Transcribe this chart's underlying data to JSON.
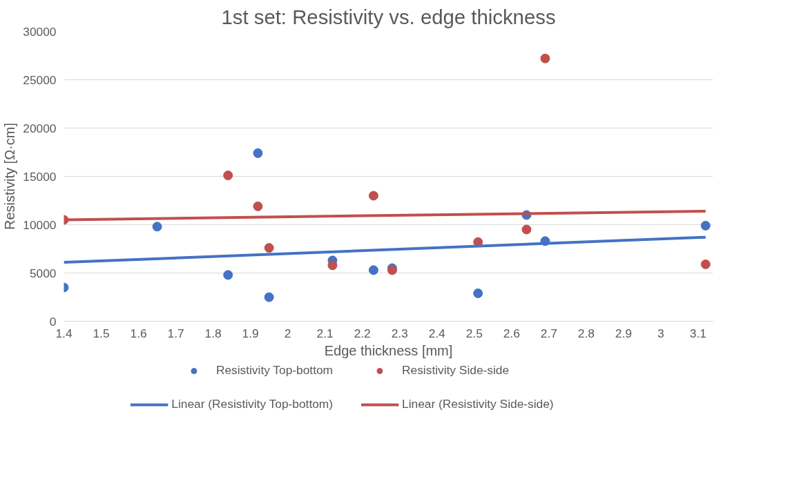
{
  "chart_data": {
    "type": "scatter",
    "title": "1st set: Resistivity vs. edge thickness",
    "xlabel": "Edge thickness [mm]",
    "ylabel": "Resistivity [Ω·cm]",
    "xlim": [
      1.4,
      3.14
    ],
    "xticks": [
      1.4,
      1.5,
      1.6,
      1.7,
      1.8,
      1.9,
      2,
      2.1,
      2.2,
      2.3,
      2.4,
      2.5,
      2.6,
      2.7,
      2.8,
      2.9,
      3,
      3.1
    ],
    "ylim": [
      0,
      30000
    ],
    "yticks": [
      0,
      5000,
      10000,
      15000,
      20000,
      25000,
      30000
    ],
    "grid": "y",
    "legend": "bottom",
    "series": [
      {
        "name": "Resistivity Top-bottom",
        "marker": "circle",
        "color": "#4472c4",
        "x": [
          1.4,
          1.65,
          1.84,
          1.92,
          1.95,
          2.12,
          2.23,
          2.28,
          2.51,
          2.64,
          2.69,
          3.12
        ],
        "values": [
          3500,
          9800,
          4800,
          17400,
          2500,
          6300,
          5300,
          5500,
          2900,
          11000,
          8300,
          9900
        ]
      },
      {
        "name": "Resistivity Side-side",
        "marker": "circle",
        "color": "#c0504d",
        "x": [
          1.4,
          1.84,
          1.92,
          1.95,
          2.12,
          2.23,
          2.28,
          2.51,
          2.64,
          2.69,
          3.12
        ],
        "values": [
          10500,
          15100,
          11900,
          7600,
          5800,
          13000,
          5300,
          8200,
          9500,
          27200,
          5900
        ]
      },
      {
        "name": "Linear (Resistivity Top-bottom)",
        "type": "line",
        "color": "#4472c4",
        "x": [
          1.4,
          3.12
        ],
        "values": [
          6100,
          8700
        ]
      },
      {
        "name": "Linear (Resistivity Side-side)",
        "type": "line",
        "color": "#c0504d",
        "x": [
          1.4,
          3.12
        ],
        "values": [
          10500,
          11400
        ]
      }
    ]
  }
}
